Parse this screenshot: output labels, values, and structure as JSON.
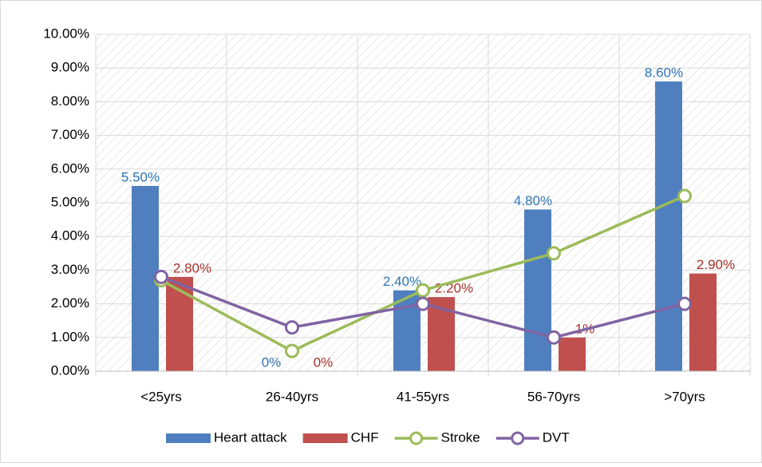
{
  "chart_data": {
    "type": "bar",
    "categories": [
      "<25yrs",
      "26-40yrs",
      "41-55yrs",
      "56-70yrs",
      ">70yrs"
    ],
    "series": [
      {
        "name": "Heart attack",
        "type": "bar",
        "color": "#4f7fbf",
        "label_color": "#2e75b6",
        "values": [
          5.5,
          0,
          2.4,
          4.8,
          8.6
        ],
        "value_labels": [
          "5.50%",
          "0%",
          "2.40%",
          "4.80%",
          "8.60%"
        ]
      },
      {
        "name": "CHF",
        "type": "bar",
        "color": "#c0504d",
        "label_color": "#a5322b",
        "values": [
          2.8,
          0,
          2.2,
          1,
          2.9
        ],
        "value_labels": [
          "2.80%",
          "0%",
          "2.20%",
          "1%",
          "2.90%"
        ]
      },
      {
        "name": "Stroke",
        "type": "line",
        "color": "#9bbb59",
        "values": [
          2.7,
          0.6,
          2.4,
          3.5,
          5.2
        ]
      },
      {
        "name": "DVT",
        "type": "line",
        "color": "#8064a2",
        "values": [
          2.8,
          1.3,
          2.0,
          1.0,
          2.0
        ]
      }
    ],
    "ylim": [
      0,
      10
    ],
    "yticks": [
      {
        "value": 0,
        "label": "0.00%"
      },
      {
        "value": 1,
        "label": "1.00%"
      },
      {
        "value": 2,
        "label": "2.00%"
      },
      {
        "value": 3,
        "label": "3.00%"
      },
      {
        "value": 4,
        "label": "4.00%"
      },
      {
        "value": 5,
        "label": "5.00%"
      },
      {
        "value": 6,
        "label": "6.00%"
      },
      {
        "value": 7,
        "label": "7.00%"
      },
      {
        "value": 8,
        "label": "8.00%"
      },
      {
        "value": 9,
        "label": "9.00%"
      },
      {
        "value": 10,
        "label": "10.00%"
      }
    ],
    "grid": true,
    "legend": "bottom"
  }
}
